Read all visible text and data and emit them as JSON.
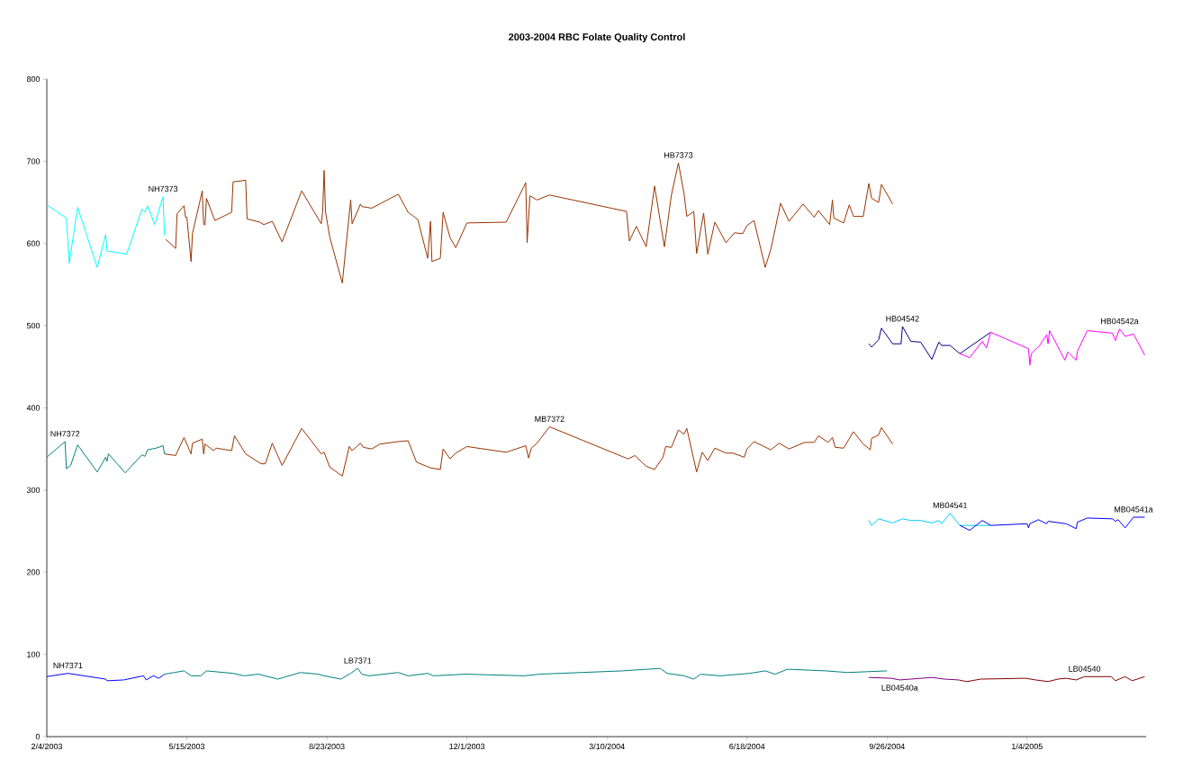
{
  "chart_data": {
    "type": "line",
    "title": "2003-2004 RBC Folate Quality Control",
    "xlim": [
      "2003-02-04",
      "2005-03-30"
    ],
    "ylim": [
      0,
      800
    ],
    "xticks": [
      {
        "value": "2003-02-04",
        "label": "2/4/2003"
      },
      {
        "value": "2003-05-15",
        "label": "5/15/2003"
      },
      {
        "value": "2003-08-23",
        "label": "8/23/2003"
      },
      {
        "value": "2003-12-01",
        "label": "12/1/2003"
      },
      {
        "value": "2004-03-10",
        "label": "3/10/2004"
      },
      {
        "value": "2004-06-18",
        "label": "6/18/2004"
      },
      {
        "value": "2004-09-26",
        "label": "9/26/2004"
      },
      {
        "value": "2005-01-04",
        "label": "1/4/2005"
      }
    ],
    "yticks": [
      0,
      100,
      200,
      300,
      400,
      500,
      600,
      700,
      800
    ],
    "series": [
      {
        "name": "NH7373",
        "color": "#00ffff",
        "x": [
          "2003-02-04",
          "2003-02-18",
          "2003-02-20",
          "2003-02-26",
          "2003-03-12",
          "2003-03-18",
          "2003-03-19",
          "2003-04-02",
          "2003-04-13",
          "2003-04-15",
          "2003-04-17",
          "2003-04-22",
          "2003-04-28",
          "2003-04-29"
        ],
        "values": [
          647,
          631,
          576,
          644,
          571,
          611,
          591,
          587,
          642,
          638,
          646,
          623,
          657,
          610
        ]
      },
      {
        "name": "HB7373",
        "color": "#993300",
        "x": [
          "2003-04-30",
          "2003-05-07",
          "2003-05-08",
          "2003-05-13",
          "2003-05-14",
          "2003-05-15",
          "2003-05-18",
          "2003-05-19",
          "2003-05-26",
          "2003-05-27",
          "2003-05-28",
          "2003-05-29",
          "2003-06-04",
          "2003-06-16",
          "2003-06-17",
          "2003-06-26",
          "2003-06-27",
          "2003-07-06",
          "2003-07-09",
          "2003-07-15",
          "2003-07-22",
          "2003-08-05",
          "2003-08-19",
          "2003-08-20",
          "2003-08-21",
          "2003-08-22",
          "2003-08-25",
          "2003-09-03",
          "2003-09-09",
          "2003-09-10",
          "2003-09-16",
          "2003-09-17",
          "2003-09-24",
          "2003-10-13",
          "2003-10-20",
          "2003-10-24",
          "2003-10-27",
          "2003-11-03",
          "2003-11-05",
          "2003-11-06",
          "2003-11-12",
          "2003-11-14",
          "2003-11-19",
          "2003-11-23",
          "2003-12-01",
          "2003-12-29",
          "2004-01-12",
          "2004-01-13",
          "2004-01-15",
          "2004-01-20",
          "2004-01-29",
          "2004-03-24",
          "2004-03-26",
          "2004-03-31",
          "2004-04-07",
          "2004-04-13",
          "2004-04-20",
          "2004-04-25",
          "2004-04-30",
          "2004-05-04",
          "2004-05-06",
          "2004-05-11",
          "2004-05-13",
          "2004-05-18",
          "2004-05-21",
          "2004-05-26",
          "2004-06-03",
          "2004-06-09",
          "2004-06-15",
          "2004-06-18",
          "2004-06-23",
          "2004-07-01",
          "2004-07-05",
          "2004-07-12",
          "2004-07-18",
          "2004-07-28",
          "2004-08-05",
          "2004-08-08",
          "2004-08-16",
          "2004-08-18",
          "2004-08-19",
          "2004-08-26",
          "2004-08-30",
          "2004-09-02",
          "2004-09-09",
          "2004-09-13",
          "2004-09-15",
          "2004-09-20",
          "2004-09-22",
          "2004-09-30"
        ],
        "values": [
          605,
          594,
          636,
          646,
          632,
          632,
          578,
          612,
          664,
          623,
          623,
          655,
          628,
          638,
          675,
          677,
          630,
          626,
          623,
          627,
          602,
          664,
          624,
          639,
          689,
          639,
          608,
          552,
          653,
          624,
          648,
          645,
          643,
          660,
          638,
          633,
          629,
          582,
          627,
          578,
          582,
          638,
          607,
          595,
          625,
          626,
          674,
          601,
          658,
          653,
          659,
          639,
          603,
          621,
          596,
          670,
          596,
          659,
          698,
          661,
          633,
          639,
          588,
          637,
          587,
          626,
          601,
          613,
          612,
          622,
          628,
          571,
          593,
          649,
          627,
          648,
          632,
          640,
          623,
          653,
          631,
          625,
          647,
          633,
          633,
          673,
          655,
          650,
          672,
          648
        ]
      },
      {
        "name": "NH7372",
        "color": "#008080",
        "x": [
          "2003-02-04",
          "2003-02-17",
          "2003-02-18",
          "2003-02-21",
          "2003-02-26",
          "2003-03-12",
          "2003-03-18",
          "2003-03-19",
          "2003-03-20",
          "2003-04-01",
          "2003-04-13",
          "2003-04-15",
          "2003-04-17",
          "2003-04-23",
          "2003-04-28",
          "2003-04-29"
        ],
        "values": [
          340,
          359,
          326,
          330,
          355,
          322,
          340,
          335,
          344,
          321,
          343,
          341,
          349,
          351,
          354,
          344
        ]
      },
      {
        "name": "MB7372",
        "color": "#993300",
        "x": [
          "2003-04-29",
          "2003-05-07",
          "2003-05-08",
          "2003-05-13",
          "2003-05-18",
          "2003-05-19",
          "2003-05-26",
          "2003-05-27",
          "2003-05-28",
          "2003-06-03",
          "2003-06-05",
          "2003-06-16",
          "2003-06-18",
          "2003-06-26",
          "2003-07-07",
          "2003-07-10",
          "2003-07-15",
          "2003-07-22",
          "2003-08-05",
          "2003-08-19",
          "2003-08-21",
          "2003-08-25",
          "2003-09-03",
          "2003-09-08",
          "2003-09-10",
          "2003-09-16",
          "2003-09-18",
          "2003-09-24",
          "2003-09-30",
          "2003-10-13",
          "2003-10-20",
          "2003-10-26",
          "2003-11-05",
          "2003-11-12",
          "2003-11-14",
          "2003-11-19",
          "2003-11-23",
          "2003-12-01",
          "2003-12-29",
          "2004-01-12",
          "2004-01-14",
          "2004-01-16",
          "2004-01-20",
          "2004-01-29",
          "2004-03-25",
          "2004-03-30",
          "2004-04-07",
          "2004-04-13",
          "2004-04-19",
          "2004-04-21",
          "2004-04-25",
          "2004-04-30",
          "2004-05-04",
          "2004-05-06",
          "2004-05-13",
          "2004-05-17",
          "2004-05-21",
          "2004-05-26",
          "2004-06-03",
          "2004-06-08",
          "2004-06-16",
          "2004-06-18",
          "2004-06-23",
          "2004-07-05",
          "2004-07-11",
          "2004-07-18",
          "2004-07-29",
          "2004-08-05",
          "2004-08-08",
          "2004-08-15",
          "2004-08-18",
          "2004-08-20",
          "2004-08-26",
          "2004-09-02",
          "2004-09-09",
          "2004-09-14",
          "2004-09-15",
          "2004-09-20",
          "2004-09-22",
          "2004-09-30"
        ],
        "values": [
          344,
          342,
          346,
          364,
          344,
          357,
          362,
          344,
          356,
          348,
          351,
          348,
          366,
          344,
          332,
          332,
          357,
          330,
          375,
          344,
          346,
          328,
          317,
          353,
          348,
          357,
          352,
          350,
          356,
          359,
          360,
          334,
          327,
          325,
          350,
          338,
          345,
          353,
          346,
          354,
          339,
          351,
          357,
          377,
          338,
          342,
          329,
          325,
          340,
          353,
          352,
          373,
          368,
          375,
          322,
          346,
          336,
          351,
          345,
          345,
          340,
          350,
          359,
          349,
          357,
          350,
          358,
          358,
          366,
          358,
          364,
          352,
          351,
          371,
          356,
          349,
          363,
          367,
          376,
          356
        ]
      },
      {
        "name": "NH7371",
        "color": "#0000ff",
        "x": [
          "2003-02-04",
          "2003-02-19",
          "2003-03-18",
          "2003-03-19",
          "2003-03-31",
          "2003-04-14",
          "2003-04-16",
          "2003-04-21",
          "2003-04-25",
          "2003-04-29"
        ],
        "values": [
          73,
          77,
          70,
          68,
          69,
          74,
          69,
          74,
          71,
          76
        ]
      },
      {
        "name": "LB7371",
        "color": "#008080",
        "x": [
          "2003-04-29",
          "2003-05-06",
          "2003-05-13",
          "2003-05-18",
          "2003-05-25",
          "2003-05-29",
          "2003-06-17",
          "2003-06-25",
          "2003-07-05",
          "2003-07-19",
          "2003-08-04",
          "2003-08-17",
          "2003-08-21",
          "2003-09-02",
          "2003-09-09",
          "2003-09-14",
          "2003-09-17",
          "2003-09-22",
          "2003-10-13",
          "2003-10-20",
          "2003-11-03",
          "2003-11-07",
          "2003-11-30",
          "2004-01-11",
          "2004-01-22",
          "2004-03-21",
          "2004-04-17",
          "2004-04-22",
          "2004-05-04",
          "2004-05-11",
          "2004-05-16",
          "2004-05-30",
          "2004-06-20",
          "2004-07-01",
          "2004-07-08",
          "2004-07-17",
          "2004-08-13",
          "2004-08-29",
          "2004-09-26"
        ],
        "values": [
          76,
          78,
          80,
          74,
          74,
          80,
          77,
          74,
          76,
          70,
          78,
          76,
          74,
          70,
          77,
          83,
          76,
          74,
          78,
          74,
          77,
          74,
          76,
          74,
          76,
          80,
          83,
          77,
          74,
          70,
          76,
          74,
          77,
          80,
          76,
          82,
          80,
          78,
          80
        ]
      },
      {
        "name": "HB04542",
        "color": "#000080",
        "x": [
          "2004-09-13",
          "2004-09-15",
          "2004-09-20",
          "2004-09-22",
          "2004-09-30",
          "2004-10-06",
          "2004-10-07",
          "2004-10-13",
          "2004-10-20",
          "2004-10-28",
          "2004-11-02",
          "2004-11-04",
          "2004-11-10",
          "2004-11-17",
          "2004-12-09"
        ],
        "values": [
          478,
          474,
          483,
          497,
          478,
          478,
          499,
          481,
          480,
          459,
          480,
          476,
          476,
          466,
          492
        ]
      },
      {
        "name": "HB04542a",
        "color": "#ff00ff",
        "x": [
          "2004-11-17",
          "2004-11-24",
          "2004-12-03",
          "2004-12-06",
          "2004-12-09",
          "2005-01-05",
          "2005-01-06",
          "2005-01-07",
          "2005-01-13",
          "2005-01-18",
          "2005-01-19",
          "2005-01-20",
          "2005-01-31",
          "2005-02-02",
          "2005-02-08",
          "2005-02-09",
          "2005-02-16",
          "2005-03-06",
          "2005-03-08",
          "2005-03-11",
          "2005-03-15",
          "2005-03-21",
          "2005-03-29"
        ],
        "values": [
          466,
          461,
          481,
          473,
          492,
          472,
          452,
          466,
          476,
          489,
          478,
          494,
          458,
          468,
          458,
          469,
          494,
          491,
          482,
          496,
          487,
          490,
          464
        ]
      },
      {
        "name": "MB04541",
        "color": "#00ccff",
        "x": [
          "2004-09-13",
          "2004-09-15",
          "2004-09-20",
          "2004-09-30",
          "2004-10-07",
          "2004-10-13",
          "2004-10-20",
          "2004-10-28",
          "2004-11-02",
          "2004-11-04",
          "2004-11-10",
          "2004-11-17",
          "2004-12-09"
        ],
        "values": [
          263,
          257,
          265,
          260,
          265,
          263,
          263,
          260,
          263,
          259,
          272,
          257,
          257
        ]
      },
      {
        "name": "MB04541a",
        "color": "#0000ff",
        "x": [
          "2004-11-17",
          "2004-11-24",
          "2004-12-03",
          "2004-12-09",
          "2005-01-04",
          "2005-01-05",
          "2005-01-06",
          "2005-01-12",
          "2005-01-18",
          "2005-01-19",
          "2005-02-01",
          "2005-02-08",
          "2005-02-09",
          "2005-02-16",
          "2005-03-06",
          "2005-03-08",
          "2005-03-10",
          "2005-03-15",
          "2005-03-21",
          "2005-03-29"
        ],
        "values": [
          257,
          251,
          263,
          257,
          259,
          254,
          259,
          264,
          259,
          262,
          259,
          253,
          261,
          266,
          265,
          262,
          264,
          254,
          267,
          267
        ]
      },
      {
        "name": "LB04540a",
        "color": "#800080",
        "x": [
          "2004-09-13",
          "2004-09-29",
          "2004-10-05",
          "2004-10-28",
          "2004-11-06",
          "2004-11-16"
        ],
        "values": [
          72,
          71,
          69,
          72,
          70,
          69
        ]
      },
      {
        "name": "LB04540",
        "color": "#800000",
        "x": [
          "2004-11-16",
          "2004-11-22",
          "2004-12-02",
          "2005-01-03",
          "2005-01-10",
          "2005-01-19",
          "2005-01-26",
          "2005-02-01",
          "2005-02-08",
          "2005-02-14",
          "2005-03-05",
          "2005-03-08",
          "2005-03-15",
          "2005-03-20",
          "2005-03-29"
        ],
        "values": [
          69,
          67,
          70,
          71,
          69,
          67,
          70,
          71,
          69,
          73,
          73,
          68,
          73,
          68,
          73
        ]
      }
    ]
  }
}
